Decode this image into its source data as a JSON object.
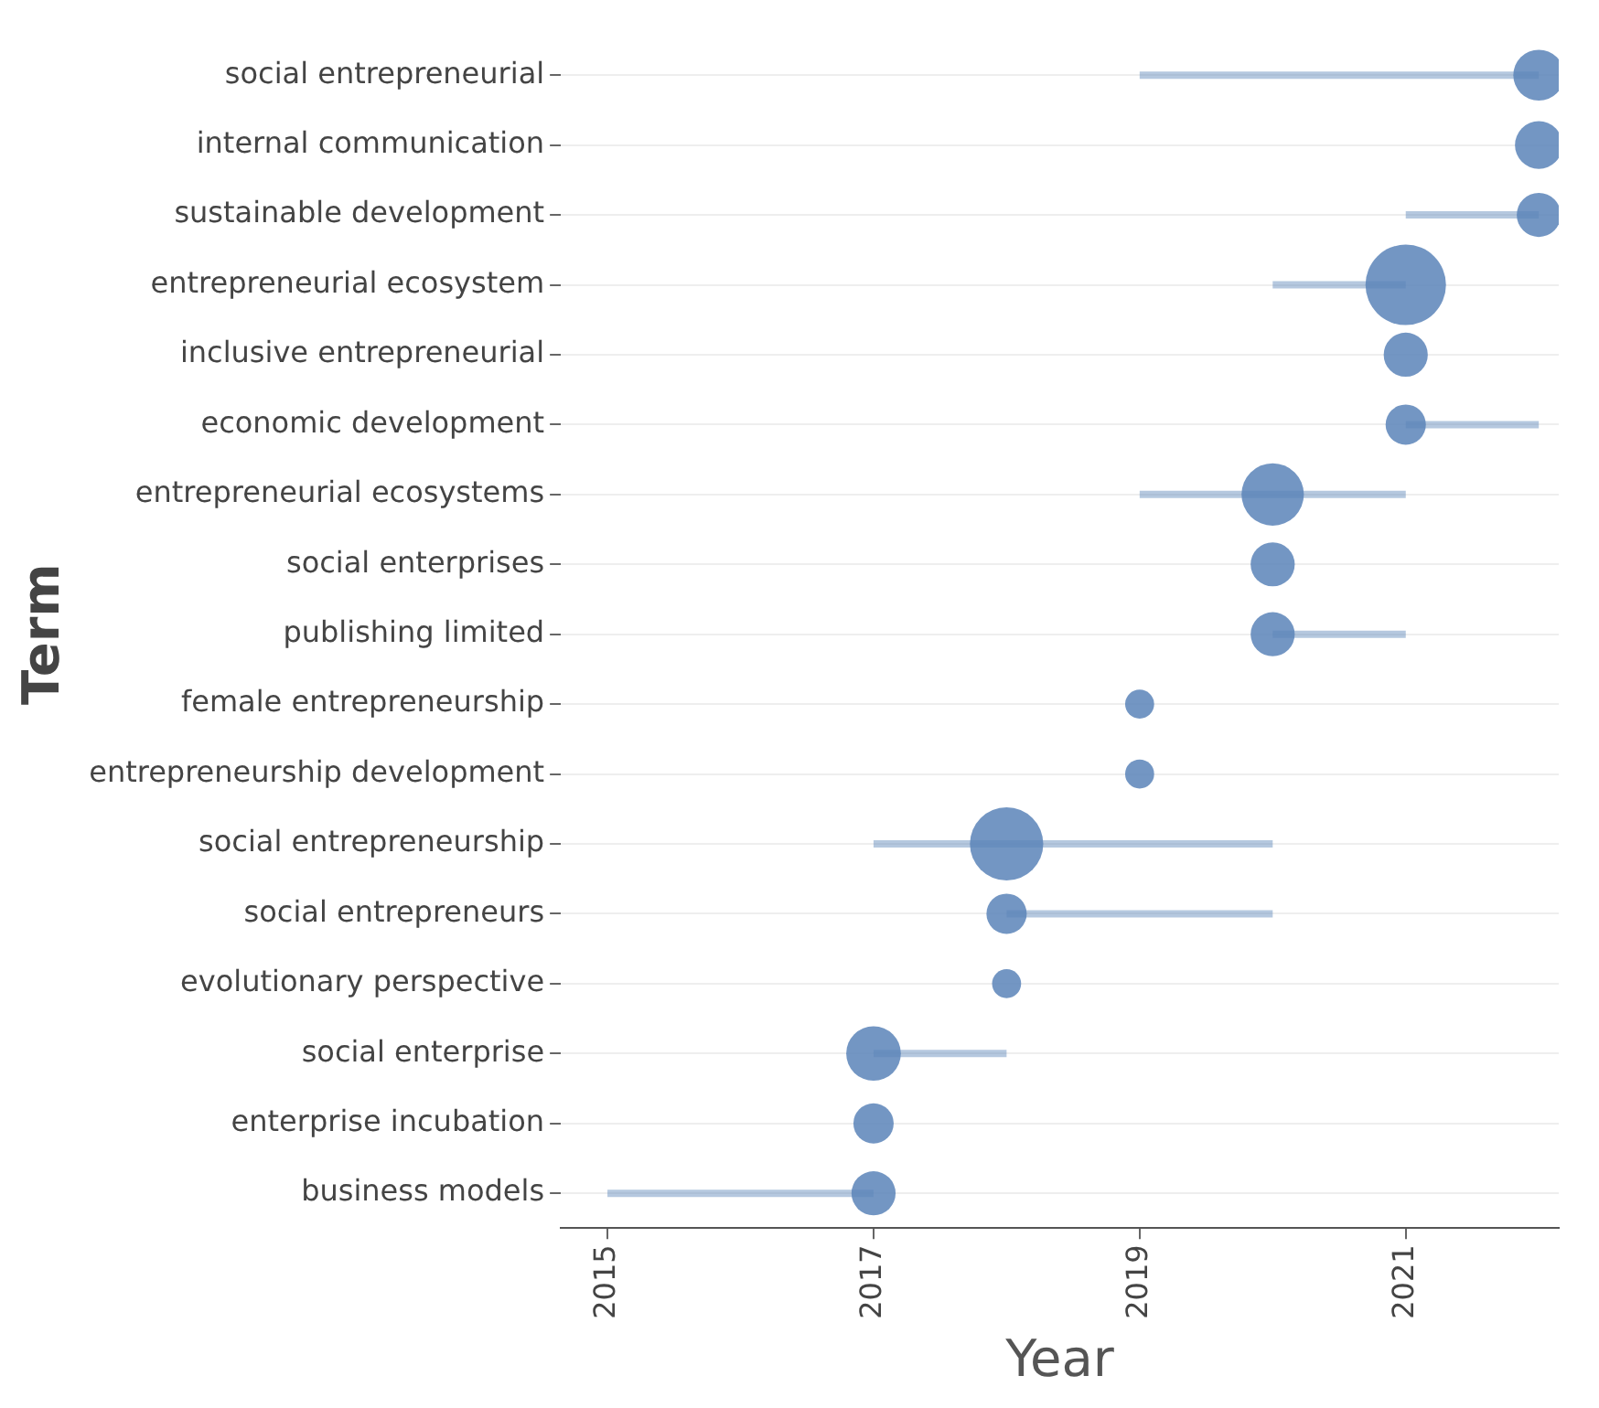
{
  "chart_data": {
    "type": "bubble",
    "orientation": "horizontal",
    "xlabel": "Year",
    "ylabel": "Term",
    "categories": [
      "social entrepreneurial",
      "internal communication",
      "sustainable development",
      "entrepreneurial ecosystem",
      "inclusive entrepreneurial",
      "economic development",
      "entrepreneurial ecosystems",
      "social enterprises",
      "publishing limited",
      "female entrepreneurship",
      "entrepreneurship development",
      "social entrepreneurship",
      "social entrepreneurs",
      "evolutionary perspective",
      "social enterprise",
      "enterprise incubation",
      "business models"
    ],
    "series": [
      {
        "color": "#5b84b8",
        "values": [
          2022,
          2022,
          2022,
          2021,
          2021,
          2021,
          2020,
          2020,
          2020,
          2019,
          2019,
          2018,
          2018,
          2018,
          2017,
          2017,
          2017
        ],
        "errors": [
          [
            2019,
            2022
          ],
          null,
          [
            2021,
            2022
          ],
          [
            2020,
            2021
          ],
          null,
          [
            2021,
            2022
          ],
          [
            2019,
            2021
          ],
          null,
          [
            2020,
            2021
          ],
          null,
          null,
          [
            2017,
            2020
          ],
          [
            2018,
            2020
          ],
          null,
          [
            2017,
            2018
          ],
          null,
          [
            2015,
            2017
          ]
        ],
        "sizes": [
          0.4,
          0.35,
          0.3,
          1,
          0.3,
          0.25,
          0.6,
          0.3,
          0.3,
          0.13,
          0.13,
          0.83,
          0.25,
          0.13,
          0.46,
          0.25,
          0.3
        ]
      }
    ],
    "xlim": [
      2014.65,
      2022.15
    ],
    "xticks": [
      2015,
      2017,
      2019,
      2021
    ],
    "grid": "y"
  }
}
